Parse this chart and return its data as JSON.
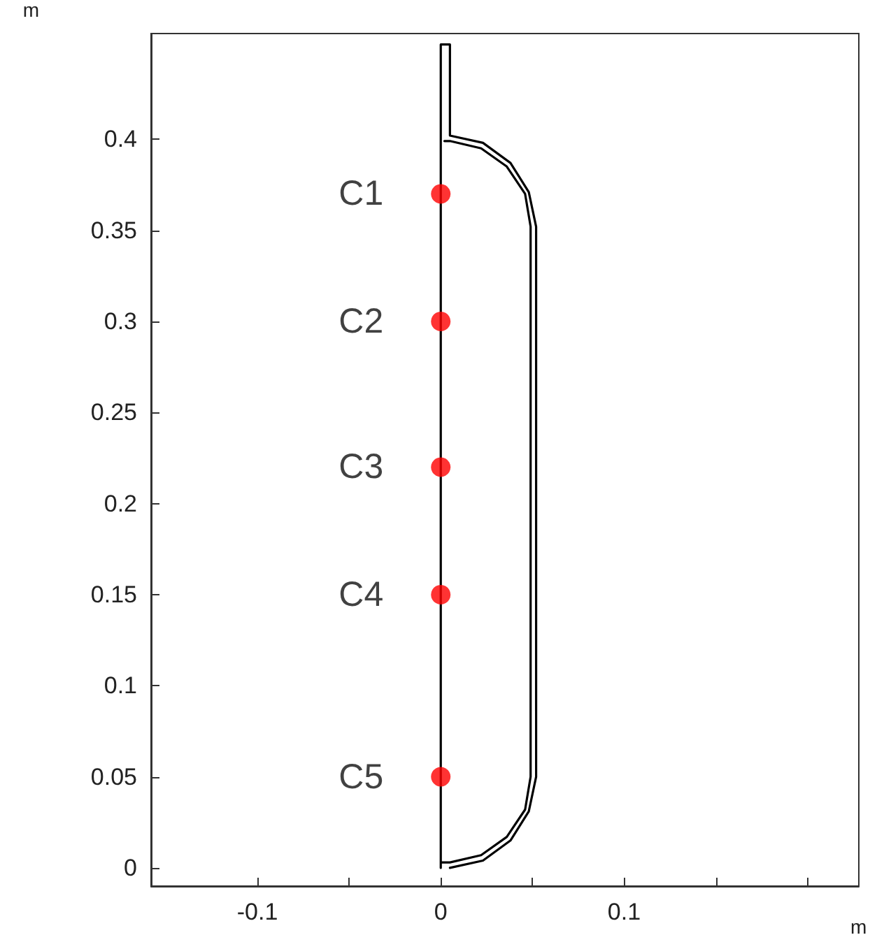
{
  "chart_data": {
    "type": "scatter",
    "xlabel": "m",
    "ylabel": "m",
    "xlim": [
      -0.158,
      0.228
    ],
    "ylim": [
      -0.01,
      0.458
    ],
    "xticks": [
      -0.1,
      {
        "value": -0.05,
        "label": null
      },
      0,
      {
        "value": 0.05,
        "label": null
      },
      0.1,
      {
        "value": 0.15,
        "label": null
      },
      {
        "value": 0.2,
        "label": null
      }
    ],
    "yticks": [
      0,
      0.05,
      0.1,
      0.15,
      0.2,
      0.25,
      0.3,
      0.35,
      0.4
    ],
    "grid": false,
    "series": [
      {
        "type": "line",
        "color": "#000000",
        "marker": "none",
        "line_style": "solid",
        "x": [
          0,
          0,
          0.005,
          0.005,
          0.023,
          0.038,
          0.048,
          0.052,
          0.052,
          0.048,
          0.038,
          0.023,
          0.005,
          null,
          0.002,
          0.005,
          0.022,
          0.036,
          0.046,
          0.049,
          0.049,
          0.046,
          0.036,
          0.022,
          0.005,
          0
        ],
        "values": [
          0,
          0.452,
          0.452,
          0.402,
          0.398,
          0.387,
          0.371,
          0.352,
          0.05,
          0.031,
          0.015,
          0.004,
          0,
          null,
          0.399,
          0.399,
          0.395,
          0.385,
          0.37,
          0.352,
          0.05,
          0.032,
          0.017,
          0.007,
          0.003,
          0.003
        ]
      },
      {
        "color": "#ff0000",
        "marker": "circle",
        "x": [
          0,
          0,
          0,
          0,
          0
        ],
        "values": [
          0.37,
          0.3,
          0.22,
          0.15,
          0.05
        ],
        "value_labels": [
          "C1",
          "C2",
          "C3",
          "C4",
          "C5"
        ]
      }
    ]
  }
}
